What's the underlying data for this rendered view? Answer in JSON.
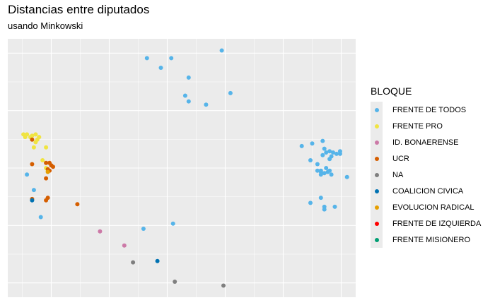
{
  "chart_data": {
    "type": "scatter",
    "title": "Distancias entre diputados",
    "subtitle": "usando Minkowski",
    "xlabel": "",
    "ylabel": "",
    "grid": true,
    "legend": {
      "title": "BLOQUE",
      "position": "right",
      "entries": [
        {
          "name": "FRENTE DE TODOS",
          "color": "#56b4e9"
        },
        {
          "name": "FRENTE PRO",
          "color": "#f0e442"
        },
        {
          "name": "ID. BONAERENSE",
          "color": "#cc79a7"
        },
        {
          "name": "UCR",
          "color": "#d55e00"
        },
        {
          "name": "NA",
          "color": "#7f7f7f"
        },
        {
          "name": "COALICION CIVICA",
          "color": "#0072b2"
        },
        {
          "name": "EVOLUCION RADICAL",
          "color": "#e69f00"
        },
        {
          "name": "FRENTE DE IZQUIERDA",
          "color": "#ff0000"
        },
        {
          "name": "FRENTE MISIONERO",
          "color": "#009e73"
        }
      ]
    },
    "xlim": [
      0,
      100
    ],
    "ylim": [
      0,
      100
    ],
    "series": [
      {
        "name": "FRENTE DE TODOS",
        "points": [
          [
            61.5,
            95.5
          ],
          [
            40,
            92.5
          ],
          [
            47,
            92.5
          ],
          [
            44,
            88.8
          ],
          [
            52,
            85
          ],
          [
            64,
            79
          ],
          [
            51,
            78
          ],
          [
            52,
            75.8
          ],
          [
            57,
            74.5
          ],
          [
            84.5,
            58.5
          ],
          [
            87.5,
            59.5
          ],
          [
            90.5,
            60.5
          ],
          [
            91,
            57.5
          ],
          [
            92.5,
            56.5
          ],
          [
            93.5,
            56
          ],
          [
            95.5,
            55.5
          ],
          [
            95.5,
            56.5
          ],
          [
            94.5,
            55.5
          ],
          [
            91.5,
            56
          ],
          [
            90.5,
            55
          ],
          [
            93,
            54.5
          ],
          [
            92.5,
            53.5
          ],
          [
            87,
            53
          ],
          [
            89,
            51.5
          ],
          [
            89,
            49
          ],
          [
            90,
            49
          ],
          [
            91.5,
            50
          ],
          [
            92.5,
            49
          ],
          [
            92,
            48.5
          ],
          [
            91,
            48
          ],
          [
            93,
            47.5
          ],
          [
            97.5,
            46.5
          ],
          [
            90,
            48.5
          ],
          [
            90,
            47.5
          ],
          [
            5.5,
            47.5
          ],
          [
            7.5,
            41.5
          ],
          [
            90,
            38.5
          ],
          [
            87,
            36.5
          ],
          [
            91,
            35
          ],
          [
            94,
            35
          ],
          [
            91,
            34
          ],
          [
            9.5,
            31
          ],
          [
            47.5,
            28.5
          ],
          [
            39,
            26.5
          ]
        ]
      },
      {
        "name": "FRENTE PRO",
        "points": [
          [
            4.5,
            63
          ],
          [
            5.5,
            63
          ],
          [
            7,
            62.5
          ],
          [
            8,
            63
          ],
          [
            9,
            62
          ],
          [
            8.5,
            61
          ],
          [
            6.5,
            62
          ],
          [
            5,
            62
          ],
          [
            8,
            60
          ],
          [
            7.5,
            58
          ],
          [
            11,
            58
          ],
          [
            10,
            53
          ],
          [
            11,
            50
          ],
          [
            11.5,
            49
          ]
        ]
      },
      {
        "name": "UCR",
        "points": [
          [
            7,
            61
          ],
          [
            7,
            51.5
          ],
          [
            11,
            52
          ],
          [
            12,
            52
          ],
          [
            12.5,
            51
          ],
          [
            13,
            50.5
          ],
          [
            11.5,
            49.5
          ],
          [
            12,
            49
          ],
          [
            11,
            46
          ],
          [
            7,
            38
          ],
          [
            11.5,
            38.5
          ],
          [
            11,
            37.5
          ],
          [
            20,
            36
          ]
        ]
      },
      {
        "name": "EVOLUCION RADICAL",
        "points": [
          [
            11.5,
            48.5
          ]
        ]
      },
      {
        "name": "COALICION CIVICA",
        "points": [
          [
            7,
            37.5
          ],
          [
            43,
            14
          ]
        ]
      },
      {
        "name": "ID. BONAERENSE",
        "points": [
          [
            26.5,
            25.5
          ],
          [
            33.5,
            20
          ]
        ]
      },
      {
        "name": "NA",
        "points": [
          [
            36,
            13.5
          ],
          [
            48,
            6
          ],
          [
            62,
            4.5
          ]
        ]
      }
    ]
  }
}
